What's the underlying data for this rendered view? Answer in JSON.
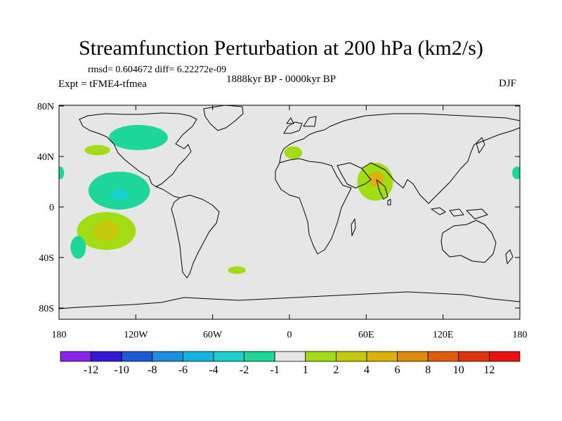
{
  "title": "Streamfunction Perturbation at 200 hPa (km2/s)",
  "stats": "rmsd= 0.604672 diff= 6.22272e-09",
  "period": "1888kyr BP - 0000kyr BP",
  "experiment": "Expt = tFME4-tfmea",
  "season": "DJF",
  "axes": {
    "y_ticks": [
      {
        "label": "80N",
        "lat": 80
      },
      {
        "label": "40N",
        "lat": 40
      },
      {
        "label": "0",
        "lat": 0
      },
      {
        "label": "40S",
        "lat": -40
      },
      {
        "label": "80S",
        "lat": -80
      }
    ],
    "x_ticks": [
      {
        "label": "180",
        "lon": -180
      },
      {
        "label": "120W",
        "lon": -120
      },
      {
        "label": "60W",
        "lon": -60
      },
      {
        "label": "0",
        "lon": 0
      },
      {
        "label": "60E",
        "lon": 60
      },
      {
        "label": "120E",
        "lon": 120
      },
      {
        "label": "180",
        "lon": 180
      }
    ]
  },
  "colorbar": {
    "colors": [
      "#8a22ee",
      "#3418d8",
      "#1a5ad8",
      "#1e8ee0",
      "#12b4e0",
      "#1ad0cc",
      "#1cd69a",
      "#e6e6e6",
      "#a2dc12",
      "#c6c80c",
      "#dcb20a",
      "#e08a0a",
      "#e05c0a",
      "#e0340c",
      "#ec1010"
    ],
    "labels": [
      "-12",
      "-10",
      "-8",
      "-6",
      "-4",
      "-2",
      "-1",
      "1",
      "2",
      "4",
      "6",
      "8",
      "10",
      "12"
    ]
  },
  "anomalies": [
    {
      "name": "north-pacific-negative",
      "lon": -118,
      "lat": 55,
      "rlon": 23,
      "rlat": 10,
      "color": "#1cd69a"
    },
    {
      "name": "central-pacific-small-positive",
      "lon": -150,
      "lat": 45,
      "rlon": 10,
      "rlat": 4,
      "color": "#a2dc12"
    },
    {
      "name": "tropical-pacific-negative",
      "lon": -133,
      "lat": 13,
      "rlon": 24,
      "rlat": 15,
      "color": "#1cd69a"
    },
    {
      "name": "tropical-pacific-core",
      "lon": -133,
      "lat": 10,
      "rlon": 7,
      "rlat": 4,
      "color": "#1ad0cc"
    },
    {
      "name": "south-pacific-positive",
      "lon": -143,
      "lat": -19,
      "rlon": 23,
      "rlat": 15,
      "color": "#a2dc12"
    },
    {
      "name": "south-pacific-core",
      "lon": -143,
      "lat": -19,
      "rlon": 10,
      "rlat": 8,
      "color": "#c6c80c"
    },
    {
      "name": "south-pacific-negative",
      "lon": -165,
      "lat": -32,
      "rlon": 6,
      "rlat": 9,
      "color": "#1cd69a"
    },
    {
      "name": "south-atlantic-positive",
      "lon": -41,
      "lat": -50,
      "rlon": 7,
      "rlat": 3,
      "color": "#a2dc12"
    },
    {
      "name": "europe-positive",
      "lon": 3,
      "lat": 43,
      "rlon": 7,
      "rlat": 5,
      "color": "#a2dc12"
    },
    {
      "name": "arabia-positive",
      "lon": 67,
      "lat": 20,
      "rlon": 14,
      "rlat": 15,
      "color": "#a2dc12"
    },
    {
      "name": "arabia-core",
      "lon": 68,
      "lat": 22,
      "rlon": 6,
      "rlat": 6,
      "color": "#dcb20a"
    },
    {
      "name": "west-pacific-negative-edge",
      "lon": 178,
      "lat": 27,
      "rlon": 4,
      "rlat": 5,
      "color": "#1cd69a"
    },
    {
      "name": "east-dateline-negative-edge",
      "lon": -179,
      "lat": 27,
      "rlon": 3,
      "rlat": 5,
      "color": "#1cd69a"
    }
  ]
}
